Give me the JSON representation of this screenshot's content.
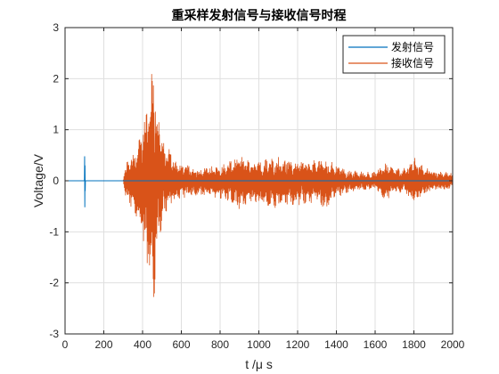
{
  "chart_data": {
    "type": "line",
    "title": "重采样发射信号与接收信号时程",
    "xlabel": "t /μ s",
    "ylabel": "Voltage/V",
    "xlim": [
      0,
      2000
    ],
    "ylim": [
      -3,
      3
    ],
    "x_ticks": [
      0,
      200,
      400,
      600,
      800,
      1000,
      1200,
      1400,
      1600,
      1800,
      2000
    ],
    "y_ticks": [
      -3,
      -2,
      -1,
      0,
      1,
      2,
      3
    ],
    "grid": true,
    "legend_position": "top-right",
    "series": [
      {
        "name": "发射信号",
        "color": "#0072BD",
        "points": [
          [
            0,
            0
          ],
          [
            100,
            0
          ],
          [
            101,
            0.48
          ],
          [
            102,
            -0.52
          ],
          [
            103,
            0.3
          ],
          [
            104,
            -0.2
          ],
          [
            105,
            0
          ],
          [
            2000,
            0
          ]
        ]
      },
      {
        "name": "接收信号",
        "color": "#D95319",
        "envelope_x": [
          0,
          300,
          310,
          330,
          350,
          370,
          390,
          410,
          430,
          450,
          460,
          470,
          490,
          510,
          530,
          560,
          600,
          650,
          700,
          750,
          800,
          850,
          900,
          950,
          1000,
          1050,
          1100,
          1150,
          1200,
          1250,
          1300,
          1350,
          1400,
          1450,
          1500,
          1550,
          1600,
          1650,
          1700,
          1750,
          1800,
          1850,
          1900,
          1950,
          2000
        ],
        "envelope_upper": [
          0,
          0,
          0.3,
          0.5,
          0.6,
          0.7,
          0.9,
          1.3,
          1.7,
          2.2,
          2.5,
          1.8,
          1.2,
          0.9,
          0.7,
          0.5,
          0.35,
          0.3,
          0.25,
          0.3,
          0.3,
          0.4,
          0.5,
          0.4,
          0.4,
          0.45,
          0.5,
          0.45,
          0.45,
          0.4,
          0.45,
          0.4,
          0.35,
          0.2,
          0.2,
          0.18,
          0.18,
          0.4,
          0.25,
          0.25,
          0.5,
          0.3,
          0.2,
          0.2,
          0.15
        ],
        "envelope_lower": [
          0,
          0,
          -0.35,
          -0.5,
          -0.65,
          -0.8,
          -1.0,
          -1.4,
          -1.9,
          -2.1,
          -2.4,
          -1.6,
          -1.1,
          -0.9,
          -0.6,
          -0.45,
          -0.35,
          -0.3,
          -0.3,
          -0.35,
          -0.35,
          -0.45,
          -0.6,
          -0.45,
          -0.5,
          -0.5,
          -0.55,
          -0.5,
          -0.5,
          -0.45,
          -0.45,
          -0.6,
          -0.35,
          -0.25,
          -0.2,
          -0.18,
          -0.18,
          -0.4,
          -0.25,
          -0.25,
          -0.45,
          -0.3,
          -0.2,
          -0.2,
          -0.15
        ]
      }
    ]
  }
}
